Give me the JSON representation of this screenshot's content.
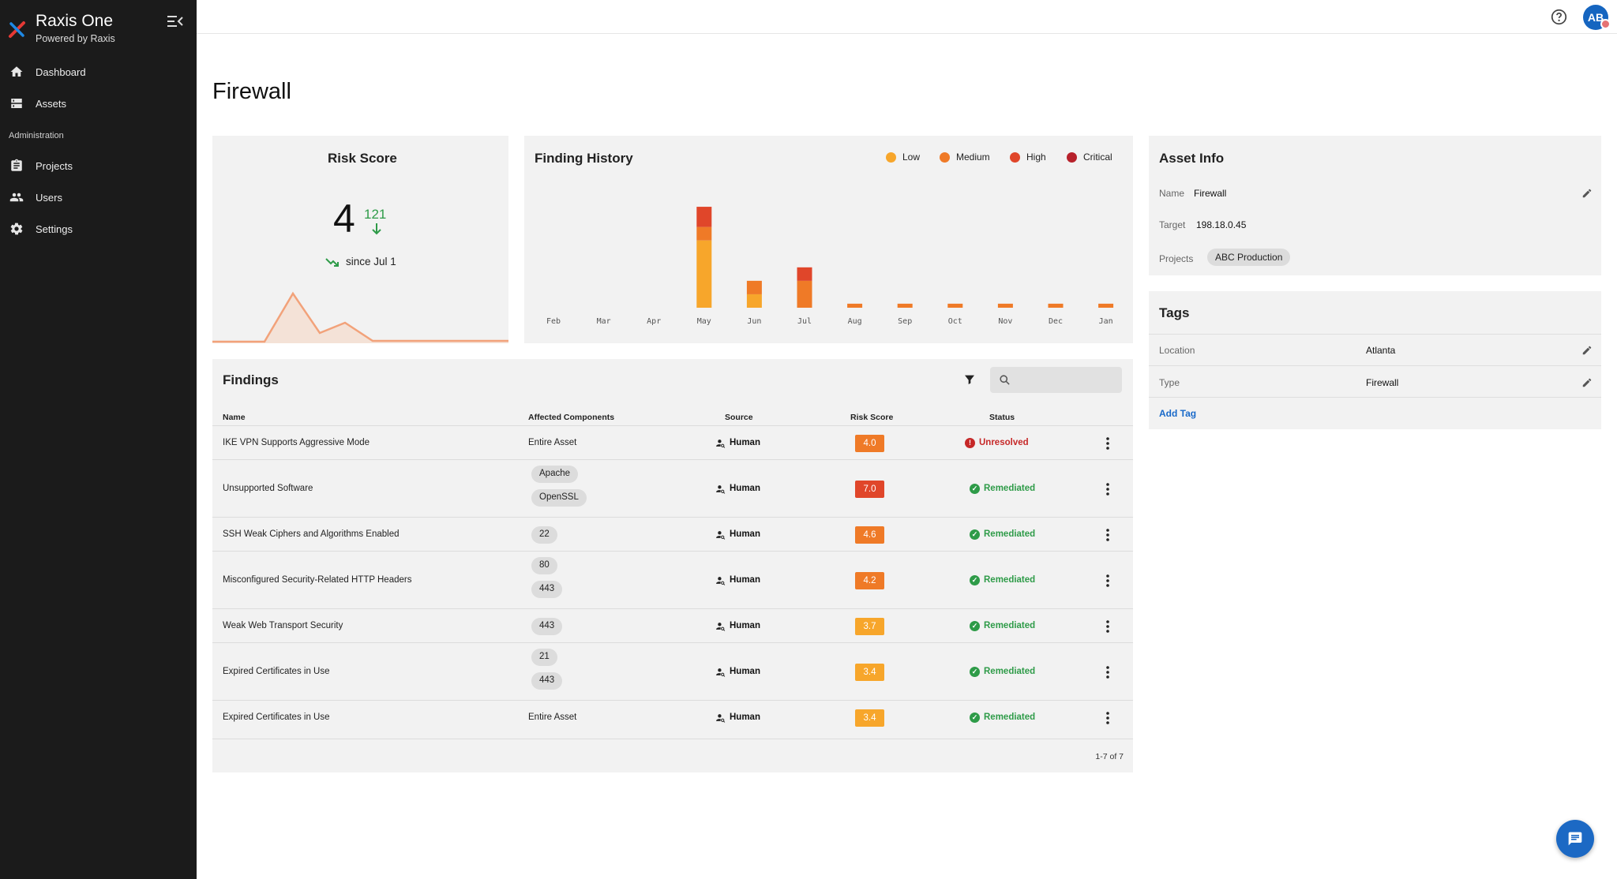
{
  "app": {
    "title": "Raxis One",
    "subtitle": "Powered by Raxis"
  },
  "sidebar": {
    "items": [
      {
        "label": "Dashboard",
        "icon": "home-icon"
      },
      {
        "label": "Assets",
        "icon": "assets-icon"
      },
      {
        "label": "Projects",
        "icon": "clipboard-icon"
      },
      {
        "label": "Users",
        "icon": "people-icon"
      },
      {
        "label": "Settings",
        "icon": "gear-icon"
      }
    ],
    "section_label": "Administration"
  },
  "topbar": {
    "avatar_initials": "AB"
  },
  "page": {
    "title": "Firewall"
  },
  "risk_score": {
    "title": "Risk Score",
    "current": "4",
    "previous": "121",
    "since_text": "since Jul 1"
  },
  "finding_history": {
    "title": "Finding History",
    "legend": [
      {
        "label": "Low",
        "color": "#f7a62b"
      },
      {
        "label": "Medium",
        "color": "#ef7a27"
      },
      {
        "label": "High",
        "color": "#e0462a"
      },
      {
        "label": "Critical",
        "color": "#b7212b"
      }
    ],
    "months": [
      "Feb",
      "Mar",
      "Apr",
      "May",
      "Jun",
      "Jul",
      "Aug",
      "Sep",
      "Oct",
      "Nov",
      "Dec",
      "Jan"
    ]
  },
  "chart_data": {
    "type": "bar",
    "stacked": true,
    "categories": [
      "Feb",
      "Mar",
      "Apr",
      "May",
      "Jun",
      "Jul",
      "Aug",
      "Sep",
      "Oct",
      "Nov",
      "Dec",
      "Jan"
    ],
    "series": [
      {
        "name": "Low",
        "values": [
          0,
          0,
          0,
          5,
          1,
          0,
          0,
          0,
          0,
          0,
          0,
          0
        ]
      },
      {
        "name": "Medium",
        "values": [
          0,
          0,
          0,
          1,
          1,
          2,
          0.3,
          0.3,
          0.3,
          0.3,
          0.3,
          0.3
        ]
      },
      {
        "name": "High",
        "values": [
          0,
          0,
          0,
          1.5,
          0,
          1,
          0,
          0,
          0,
          0,
          0,
          0
        ]
      },
      {
        "name": "Critical",
        "values": [
          0,
          0,
          0,
          0,
          0,
          0,
          0,
          0,
          0,
          0,
          0,
          0
        ]
      }
    ],
    "ylim": [
      0,
      8.5
    ]
  },
  "asset_info": {
    "title": "Asset Info",
    "name_label": "Name",
    "name_value": "Firewall",
    "target_label": "Target",
    "target_value": "198.18.0.45",
    "projects_label": "Projects",
    "project_chip": "ABC Production"
  },
  "tags": {
    "title": "Tags",
    "rows": [
      {
        "key": "Location",
        "value": "Atlanta"
      },
      {
        "key": "Type",
        "value": "Firewall"
      }
    ],
    "add_label": "Add Tag"
  },
  "findings": {
    "title": "Findings",
    "search_placeholder": "",
    "columns": [
      "Name",
      "Affected Components",
      "Source",
      "Risk Score",
      "Status"
    ],
    "rows": [
      {
        "name": "IKE VPN Supports Aggressive Mode",
        "components": [
          "Entire Asset"
        ],
        "chips": false,
        "source": "Human",
        "score": "4.0",
        "score_color": "#ef7a27",
        "status": "Unresolved",
        "status_color": "#c62828"
      },
      {
        "name": "Unsupported Software",
        "components": [
          "Apache",
          "OpenSSL"
        ],
        "chips": true,
        "source": "Human",
        "score": "7.0",
        "score_color": "#e0462a",
        "status": "Remediated",
        "status_color": "#2e9b48"
      },
      {
        "name": "SSH Weak Ciphers and Algorithms Enabled",
        "components": [
          "22"
        ],
        "chips": true,
        "source": "Human",
        "score": "4.6",
        "score_color": "#ef7a27",
        "status": "Remediated",
        "status_color": "#2e9b48"
      },
      {
        "name": "Misconfigured Security-Related HTTP Headers",
        "components": [
          "80",
          "443"
        ],
        "chips": true,
        "source": "Human",
        "score": "4.2",
        "score_color": "#ef7a27",
        "status": "Remediated",
        "status_color": "#2e9b48"
      },
      {
        "name": "Weak Web Transport Security",
        "components": [
          "443"
        ],
        "chips": true,
        "source": "Human",
        "score": "3.7",
        "score_color": "#f7a62b",
        "status": "Remediated",
        "status_color": "#2e9b48"
      },
      {
        "name": "Expired Certificates in Use",
        "components": [
          "21",
          "443"
        ],
        "chips": true,
        "source": "Human",
        "score": "3.4",
        "score_color": "#f7a62b",
        "status": "Remediated",
        "status_color": "#2e9b48"
      },
      {
        "name": "Expired Certificates in Use",
        "components": [
          "Entire Asset"
        ],
        "chips": false,
        "source": "Human",
        "score": "3.4",
        "score_color": "#f7a62b",
        "status": "Remediated",
        "status_color": "#2e9b48"
      }
    ],
    "pagination": "1-7 of 7"
  }
}
